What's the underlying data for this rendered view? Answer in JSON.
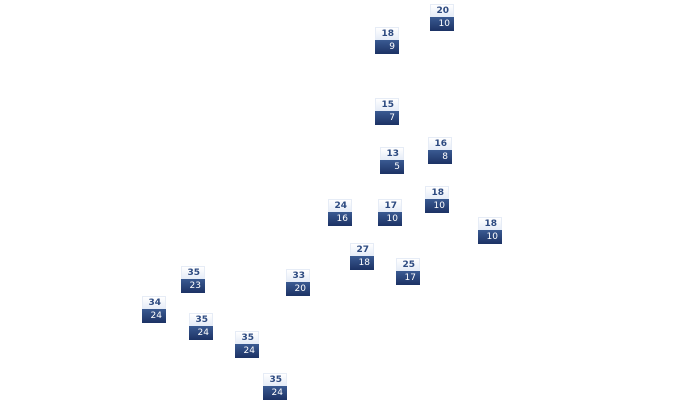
{
  "markers": [
    {
      "high": "20",
      "low": "10"
    },
    {
      "high": "18",
      "low": "9"
    },
    {
      "high": "15",
      "low": "7"
    },
    {
      "high": "16",
      "low": "8"
    },
    {
      "high": "13",
      "low": "5"
    },
    {
      "high": "24",
      "low": "16"
    },
    {
      "high": "17",
      "low": "10"
    },
    {
      "high": "18",
      "low": "10"
    },
    {
      "high": "18",
      "low": "10"
    },
    {
      "high": "27",
      "low": "18"
    },
    {
      "high": "25",
      "low": "17"
    },
    {
      "high": "35",
      "low": "23"
    },
    {
      "high": "33",
      "low": "20"
    },
    {
      "high": "34",
      "low": "24"
    },
    {
      "high": "35",
      "low": "24"
    },
    {
      "high": "35",
      "low": "24"
    },
    {
      "high": "35",
      "low": "24"
    }
  ],
  "colors": {
    "high_text": "#2d4a80",
    "low_bg": "#1c3264"
  }
}
